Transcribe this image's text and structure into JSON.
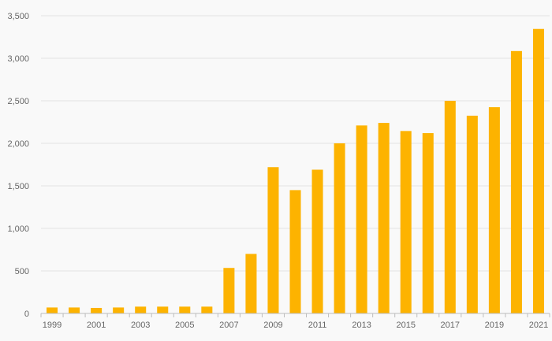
{
  "chart_data": {
    "type": "bar",
    "categories": [
      "1999",
      "2000",
      "2001",
      "2002",
      "2003",
      "2004",
      "2005",
      "2006",
      "2007",
      "2008",
      "2009",
      "2010",
      "2011",
      "2012",
      "2013",
      "2014",
      "2015",
      "2016",
      "2017",
      "2018",
      "2019",
      "2020",
      "2021"
    ],
    "x_tick_labels": [
      "1999",
      "2001",
      "2003",
      "2005",
      "2007",
      "2009",
      "2011",
      "2013",
      "2015",
      "2017",
      "2019",
      "2021"
    ],
    "values": [
      70,
      70,
      65,
      70,
      80,
      80,
      80,
      80,
      535,
      700,
      1720,
      1450,
      1690,
      2000,
      2210,
      2240,
      2145,
      2120,
      2500,
      2325,
      2425,
      3085,
      3345
    ],
    "ylim": [
      0,
      3500
    ],
    "y_ticks": [
      0,
      500,
      1000,
      1500,
      2000,
      2500,
      3000,
      3500
    ],
    "y_tick_labels": [
      "0",
      "500",
      "1,000",
      "1,500",
      "2,000",
      "2,500",
      "3,000",
      "3,500"
    ],
    "bar_color": "#FDB300",
    "grid": true,
    "title": "",
    "xlabel": "",
    "ylabel": ""
  }
}
